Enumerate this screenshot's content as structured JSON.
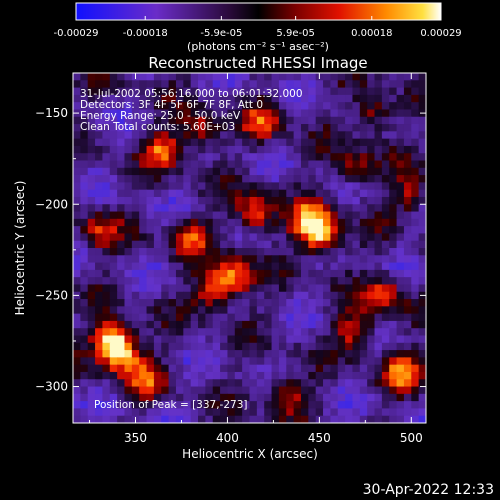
{
  "colorbar": {
    "tick_labels": [
      "-0.00029",
      "-0.00018",
      "-5.9e-05",
      "5.9e-05",
      "0.00018",
      "0.00029"
    ],
    "ticks": [
      -0.00029,
      -0.00018,
      -5.9e-05,
      5.9e-05,
      0.00018,
      0.00029
    ],
    "range": [
      -0.00029,
      0.00029
    ],
    "unit_label": "(photons cm⁻² s⁻¹ asec⁻²)",
    "colormap": "blue-purple-black-red-orange-yellow-white"
  },
  "chart_data": {
    "type": "heatmap",
    "title": "Reconstructed RHESSI Image",
    "xlabel": "Heliocentric X (arcsec)",
    "ylabel": "Heliocentric Y (arcsec)",
    "xlim": [
      316,
      508
    ],
    "ylim": [
      -320,
      -128
    ],
    "xticks": [
      350,
      400,
      450,
      500
    ],
    "yticks": [
      -150,
      -200,
      -250,
      -300
    ],
    "xtick_labels": [
      "350",
      "400",
      "450",
      "500"
    ],
    "ytick_labels": [
      "−150",
      "−200",
      "−250",
      "−300"
    ],
    "peak": [
      337,
      -273
    ],
    "annotations": [
      "31-Jul-2002 05:56:16.000 to 06:01:32.000",
      "Detectors: 3F 4F 5F 6F 7F 8F, Att 0",
      "Energy Range: 25.0 - 50.0 keV",
      "Clean    Total counts: 5.60E+03"
    ],
    "peak_label": "Position of Peak = [337,-273]",
    "hot_spots": [
      {
        "x": 337,
        "y": -273,
        "intensity": 1.0
      },
      {
        "x": 342,
        "y": -282,
        "intensity": 0.95
      },
      {
        "x": 445,
        "y": -210,
        "intensity": 0.9
      },
      {
        "x": 452,
        "y": -218,
        "intensity": 0.85
      },
      {
        "x": 403,
        "y": -240,
        "intensity": 0.85
      },
      {
        "x": 392,
        "y": -248,
        "intensity": 0.75
      },
      {
        "x": 415,
        "y": -205,
        "intensity": 0.8
      },
      {
        "x": 485,
        "y": -250,
        "intensity": 0.7
      },
      {
        "x": 470,
        "y": -270,
        "intensity": 0.65
      },
      {
        "x": 495,
        "y": -292,
        "intensity": 0.7
      },
      {
        "x": 365,
        "y": -170,
        "intensity": 0.7
      },
      {
        "x": 385,
        "y": -160,
        "intensity": 0.65
      },
      {
        "x": 420,
        "y": -155,
        "intensity": 0.6
      },
      {
        "x": 480,
        "y": -150,
        "intensity": 0.6
      },
      {
        "x": 432,
        "y": -303,
        "intensity": 0.6
      },
      {
        "x": 380,
        "y": -218,
        "intensity": 0.6
      },
      {
        "x": 470,
        "y": -180,
        "intensity": 0.55
      },
      {
        "x": 500,
        "y": -195,
        "intensity": 0.55
      },
      {
        "x": 330,
        "y": -215,
        "intensity": 0.5
      },
      {
        "x": 355,
        "y": -295,
        "intensity": 0.55
      }
    ]
  },
  "footer": {
    "timestamp": "30-Apr-2022 12:33"
  }
}
